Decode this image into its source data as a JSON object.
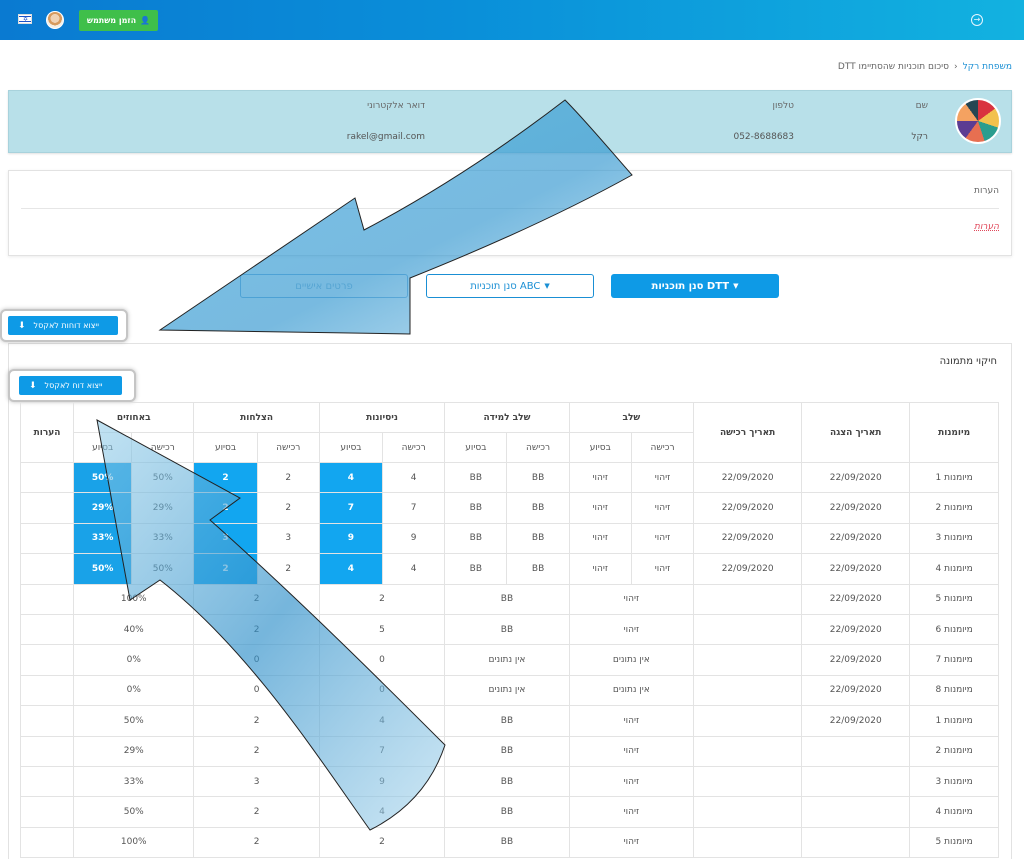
{
  "topbar": {
    "invite_label": "הזמן משתמש",
    "flag_icon": "israel-flag-icon",
    "logout_icon": "logout-icon",
    "brand_color": "#0a8fd9"
  },
  "breadcrumb": {
    "parent": "משפחת רקל",
    "current": "סיכום תוכניות שהסתיימו DTT"
  },
  "user": {
    "name_label": "שם",
    "name_value": "רקל",
    "phone_label": "טלפון",
    "phone_value": "052-8688683",
    "email_label": "דואר אלקטרוני",
    "email_value": "rakel@gmail.com"
  },
  "notes": {
    "title": "הערות",
    "link": "הערות"
  },
  "filters": {
    "dtt": "סנן תוכניות DTT",
    "abc": "סנן תוכניות ABC",
    "personal": "פרטים אישיים"
  },
  "exports": {
    "all_reports": "ייצוא דוחות לאקסל",
    "single_report": "ייצוא דוח לאקסל"
  },
  "section": {
    "title": "חיקוי מתמונה"
  },
  "table": {
    "groups": [
      "מיומנות",
      "תאריך הצגה",
      "תאריך רכישה",
      "שלב",
      "שלב למידה",
      "ניסיונות",
      "הצלחות",
      "באחוזים",
      "הערות"
    ],
    "sub": [
      "רכישה",
      "בסיוע",
      "רכישה",
      "בסיוע",
      "רכישה",
      "בסיוע",
      "רכישה",
      "בסיוע",
      "רכישה",
      "בסיוע"
    ],
    "rows_split": [
      {
        "skill": "מיומנות 1",
        "shown": "22/09/2020",
        "acq": "22/09/2020",
        "s1": "זיהוי",
        "s2": "זיהוי",
        "l1": "BB",
        "l2": "BB",
        "t1": "4",
        "t2": "4",
        "w1": "2",
        "w2": "2",
        "p1": "50%",
        "p2": "50%",
        "note": ""
      },
      {
        "skill": "מיומנות 2",
        "shown": "22/09/2020",
        "acq": "22/09/2020",
        "s1": "זיהוי",
        "s2": "זיהוי",
        "l1": "BB",
        "l2": "BB",
        "t1": "7",
        "t2": "7",
        "w1": "2",
        "w2": "2",
        "p1": "29%",
        "p2": "29%",
        "note": ""
      },
      {
        "skill": "מיומנות 3",
        "shown": "22/09/2020",
        "acq": "22/09/2020",
        "s1": "זיהוי",
        "s2": "זיהוי",
        "l1": "BB",
        "l2": "BB",
        "t1": "9",
        "t2": "9",
        "w1": "3",
        "w2": "3",
        "p1": "33%",
        "p2": "33%",
        "note": ""
      },
      {
        "skill": "מיומנות 4",
        "shown": "22/09/2020",
        "acq": "22/09/2020",
        "s1": "זיהוי",
        "s2": "זיהוי",
        "l1": "BB",
        "l2": "BB",
        "t1": "4",
        "t2": "4",
        "w1": "2",
        "w2": "2",
        "p1": "50%",
        "p2": "50%",
        "note": ""
      }
    ],
    "rows_merged": [
      {
        "skill": "מיומנות 5",
        "shown": "22/09/2020",
        "acq": "",
        "stage": "זיהוי",
        "learn": "BB",
        "tries": "2",
        "wins": "2",
        "pct": "100%"
      },
      {
        "skill": "מיומנות 6",
        "shown": "22/09/2020",
        "acq": "",
        "stage": "זיהוי",
        "learn": "BB",
        "tries": "5",
        "wins": "2",
        "pct": "40%"
      },
      {
        "skill": "מיומנות 7",
        "shown": "22/09/2020",
        "acq": "",
        "stage": "אין נתונים",
        "learn": "אין נתונים",
        "tries": "0",
        "wins": "0",
        "pct": "0%"
      },
      {
        "skill": "מיומנות 8",
        "shown": "22/09/2020",
        "acq": "",
        "stage": "אין נתונים",
        "learn": "אין נתונים",
        "tries": "0",
        "wins": "0",
        "pct": "0%"
      },
      {
        "skill": "מיומנות 1",
        "shown": "22/09/2020",
        "acq": "",
        "stage": "זיהוי",
        "learn": "BB",
        "tries": "4",
        "wins": "2",
        "pct": "50%"
      },
      {
        "skill": "מיומנות 2",
        "shown": "",
        "acq": "",
        "stage": "זיהוי",
        "learn": "BB",
        "tries": "7",
        "wins": "2",
        "pct": "29%"
      },
      {
        "skill": "מיומנות 3",
        "shown": "",
        "acq": "",
        "stage": "זיהוי",
        "learn": "BB",
        "tries": "9",
        "wins": "3",
        "pct": "33%"
      },
      {
        "skill": "מיומנות 4",
        "shown": "",
        "acq": "",
        "stage": "זיהוי",
        "learn": "BB",
        "tries": "4",
        "wins": "2",
        "pct": "50%"
      },
      {
        "skill": "מיומנות 5",
        "shown": "",
        "acq": "",
        "stage": "זיהוי",
        "learn": "BB",
        "tries": "2",
        "wins": "2",
        "pct": "100%"
      }
    ]
  }
}
